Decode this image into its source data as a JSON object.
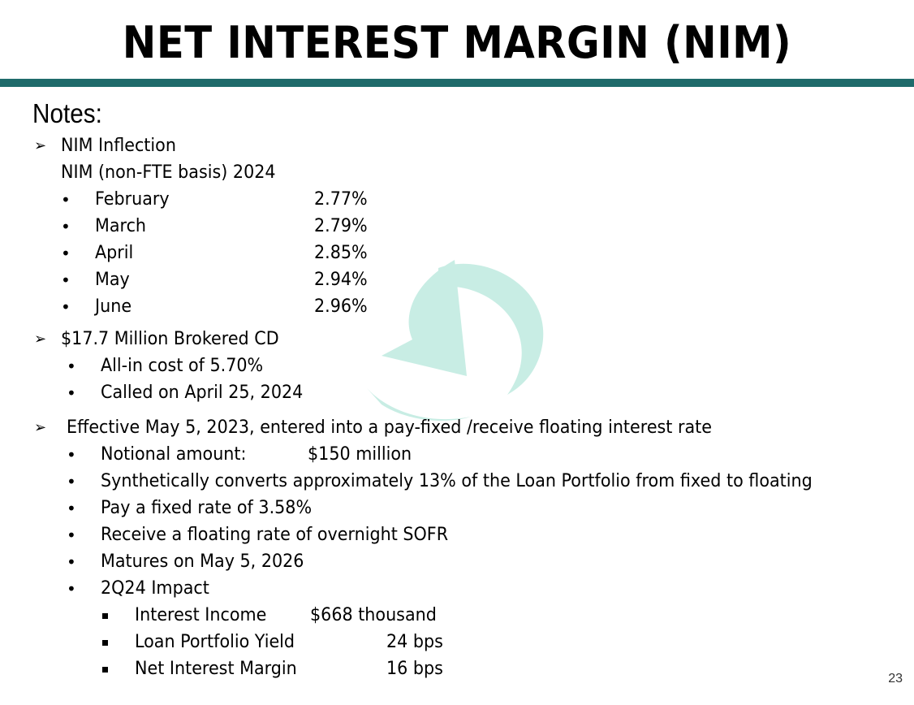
{
  "title": "NET INTEREST MARGIN (NIM)",
  "colors": {
    "rule": "#1f6b6b",
    "watermark": "#c8ede4"
  },
  "notes_heading": "Notes:",
  "section1": {
    "heading": "NIM Inflection",
    "subheading": "NIM (non-FTE basis) 2024",
    "rows": [
      {
        "month": "February",
        "value": "2.77%"
      },
      {
        "month": "March",
        "value": "2.79%"
      },
      {
        "month": "April",
        "value": "2.85%"
      },
      {
        "month": "May",
        "value": "2.94%"
      },
      {
        "month": "June",
        "value": "2.96%"
      }
    ]
  },
  "section2": {
    "heading": "$17.7 Million Brokered CD",
    "items": [
      "All-in cost of 5.70%",
      "Called on April 25, 2024"
    ]
  },
  "section3": {
    "heading": "Effective May 5, 2023, entered into a  pay-fixed /receive floating interest rate",
    "notional_label": "Notional amount:",
    "notional_value": "$150 million",
    "items": [
      "Synthetically converts approximately 13% of the Loan Portfolio from fixed to floating",
      "Pay a fixed rate of 3.58%",
      "Receive a floating rate of overnight SOFR",
      "Matures on May 5, 2026",
      "2Q24 Impact"
    ],
    "impact": [
      {
        "label": "Interest Income",
        "value": "$668 thousand"
      },
      {
        "label": "Loan Portfolio Yield",
        "value": "24 bps"
      },
      {
        "label": "Net Interest Margin",
        "value": "16 bps"
      }
    ]
  },
  "page_number": "23"
}
